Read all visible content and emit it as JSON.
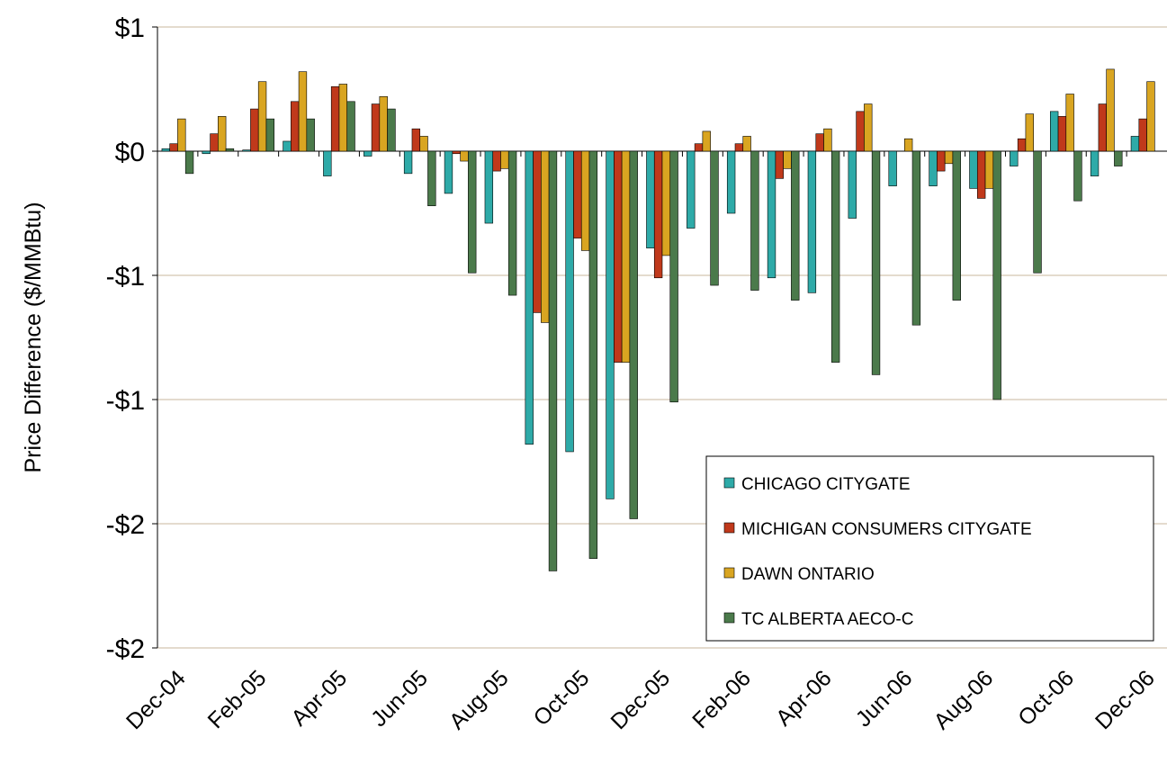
{
  "chart_data": {
    "type": "bar",
    "y_label": "Price Difference ($/MMBtu)",
    "categories": [
      "Dec-04",
      null,
      "Feb-05",
      null,
      "Apr-05",
      null,
      "Jun-05",
      null,
      "Aug-05",
      null,
      "Oct-05",
      null,
      "Dec-05",
      null,
      "Feb-06",
      null,
      "Apr-06",
      null,
      "Jun-06",
      null,
      "Aug-06",
      null,
      "Oct-06",
      null,
      "Dec-06"
    ],
    "series": [
      {
        "name": "CHICAGO CITYGATE",
        "color": "#2eaaa8",
        "values": [
          0.01,
          -0.01,
          0.005,
          0.04,
          -0.1,
          -0.02,
          -0.09,
          -0.17,
          -0.29,
          -1.18,
          -1.21,
          -1.4,
          -0.39,
          -0.31,
          -0.25,
          -0.51,
          -0.57,
          -0.27,
          -0.14,
          -0.14,
          -0.15,
          -0.06,
          0.16,
          -0.1,
          0.06
        ]
      },
      {
        "name": "MICHIGAN CONSUMERS CITYGATE",
        "color": "#c0391b",
        "values": [
          0.03,
          0.07,
          0.17,
          0.2,
          0.26,
          0.19,
          0.09,
          -0.01,
          -0.08,
          -0.65,
          -0.35,
          -0.85,
          -0.51,
          0.03,
          0.03,
          -0.11,
          0.07,
          0.16,
          0,
          -0.08,
          -0.19,
          0.05,
          0.14,
          0.19,
          0.13
        ]
      },
      {
        "name": "DAWN ONTARIO",
        "color": "#d9a521",
        "values": [
          0.13,
          0.14,
          0.28,
          0.32,
          0.27,
          0.22,
          0.06,
          -0.04,
          -0.07,
          -0.69,
          -0.4,
          -0.85,
          -0.42,
          0.08,
          0.06,
          -0.07,
          0.09,
          0.19,
          0.05,
          -0.05,
          -0.15,
          0.15,
          0.23,
          0.33,
          0.28
        ]
      },
      {
        "name": "TC ALBERTA AECO-C",
        "color": "#4b7a4b",
        "values": [
          -0.09,
          0.01,
          0.13,
          0.13,
          0.2,
          0.17,
          -0.22,
          -0.49,
          -0.58,
          -1.69,
          -1.64,
          -1.48,
          -1.01,
          -0.54,
          -0.56,
          -0.6,
          -0.85,
          -0.9,
          -0.7,
          -0.6,
          -1.0,
          -0.49,
          -0.2,
          -0.06,
          null
        ]
      }
    ],
    "ylim": [
      -2,
      0.5
    ],
    "yticks": [
      {
        "value": 0.5,
        "label": "$1"
      },
      {
        "value": 0,
        "label": "$0"
      },
      {
        "value": -0.5,
        "label": "-$1"
      },
      {
        "value": -1,
        "label": "-$1"
      },
      {
        "value": -1.5,
        "label": "-$2"
      },
      {
        "value": -2,
        "label": "-$2"
      }
    ],
    "grid": true
  }
}
